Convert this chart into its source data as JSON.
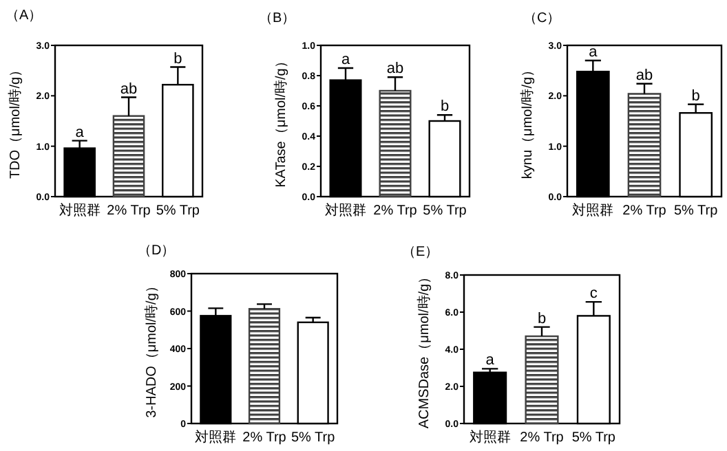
{
  "chart_data": [
    {
      "type": "bar",
      "title": "（A）",
      "ylabel": "TDO（μmol/時/g）",
      "categories": [
        "対照群",
        "2% Trp",
        "5% Trp"
      ],
      "values": [
        0.96,
        1.6,
        2.22
      ],
      "errors": [
        0.15,
        0.37,
        0.35
      ],
      "colors": [
        "#000000",
        "#404040",
        "#ffffff"
      ],
      "ylim": [
        0,
        3
      ],
      "yticks": [
        {
          "value": 0,
          "label": "0.0"
        },
        {
          "value": 1,
          "label": "1.0"
        },
        {
          "value": 2,
          "label": "2.0"
        },
        {
          "value": 3,
          "label": "3.0"
        }
      ],
      "annotations": [
        {
          "text": "a",
          "x": "対照群",
          "y": 1.11
        },
        {
          "text": "ab",
          "x": "2% Trp",
          "y": 1.97
        },
        {
          "text": "b",
          "x": "5% Trp",
          "y": 2.57
        }
      ]
    },
    {
      "type": "bar",
      "title": "（B）",
      "ylabel": "KATase（μmol/時/g）",
      "categories": [
        "対照群",
        "2% Trp",
        "5% Trp"
      ],
      "values": [
        0.77,
        0.7,
        0.5
      ],
      "errors": [
        0.08,
        0.09,
        0.04
      ],
      "colors": [
        "#000000",
        "#404040",
        "#ffffff"
      ],
      "ylim": [
        0,
        1
      ],
      "yticks": [
        {
          "value": 0,
          "label": "0.0"
        },
        0.2,
        0.4,
        0.6,
        0.8,
        {
          "value": 1,
          "label": "1.0"
        }
      ],
      "annotations": [
        {
          "text": "a",
          "x": "対照群",
          "y": 0.85
        },
        {
          "text": "ab",
          "x": "2% Trp",
          "y": 0.79
        },
        {
          "text": "b",
          "x": "5% Trp",
          "y": 0.54
        }
      ]
    },
    {
      "type": "bar",
      "title": "（C）",
      "ylabel": "kynu（μmol/時/g）",
      "categories": [
        "対照群",
        "2% Trp",
        "5% Trp"
      ],
      "values": [
        2.48,
        2.04,
        1.66
      ],
      "errors": [
        0.22,
        0.2,
        0.17
      ],
      "colors": [
        "#000000",
        "#404040",
        "#ffffff"
      ],
      "ylim": [
        0,
        3
      ],
      "yticks": [
        {
          "value": 0,
          "label": "0.0"
        },
        {
          "value": 1,
          "label": "1.0"
        },
        {
          "value": 2,
          "label": "2.0"
        },
        {
          "value": 3,
          "label": "3.0"
        }
      ],
      "annotations": [
        {
          "text": "a",
          "x": "対照群",
          "y": 2.7
        },
        {
          "text": "ab",
          "x": "2% Trp",
          "y": 2.24
        },
        {
          "text": "b",
          "x": "5% Trp",
          "y": 1.83
        }
      ]
    },
    {
      "type": "bar",
      "title": "（D）",
      "ylabel": "3-HADO（μmol/時/g）",
      "categories": [
        "対照群",
        "2% Trp",
        "5% Trp"
      ],
      "values": [
        575,
        612,
        540
      ],
      "errors": [
        40,
        25,
        25
      ],
      "colors": [
        "#000000",
        "#404040",
        "#ffffff"
      ],
      "ylim": [
        0,
        800
      ],
      "yticks": [
        0,
        200,
        400,
        600,
        800
      ]
    },
    {
      "type": "bar",
      "title": "（E）",
      "ylabel": "ACMSDase（μmol/時/g）",
      "categories": [
        "対照群",
        "2% Trp",
        "5% Trp"
      ],
      "values": [
        2.75,
        4.7,
        5.8
      ],
      "errors": [
        0.2,
        0.5,
        0.75
      ],
      "colors": [
        "#000000",
        "#404040",
        "#ffffff"
      ],
      "ylim": [
        0,
        8
      ],
      "yticks": [
        {
          "value": 0,
          "label": "0.0"
        },
        {
          "value": 2,
          "label": "2.0"
        },
        {
          "value": 4,
          "label": "4.0"
        },
        {
          "value": 6,
          "label": "6.0"
        },
        {
          "value": 8,
          "label": "8.0"
        }
      ],
      "annotations": [
        {
          "text": "a",
          "x": "対照群",
          "y": 2.95
        },
        {
          "text": "b",
          "x": "2% Trp",
          "y": 5.2
        },
        {
          "text": "c",
          "x": "5% Trp",
          "y": 6.55
        }
      ]
    }
  ]
}
